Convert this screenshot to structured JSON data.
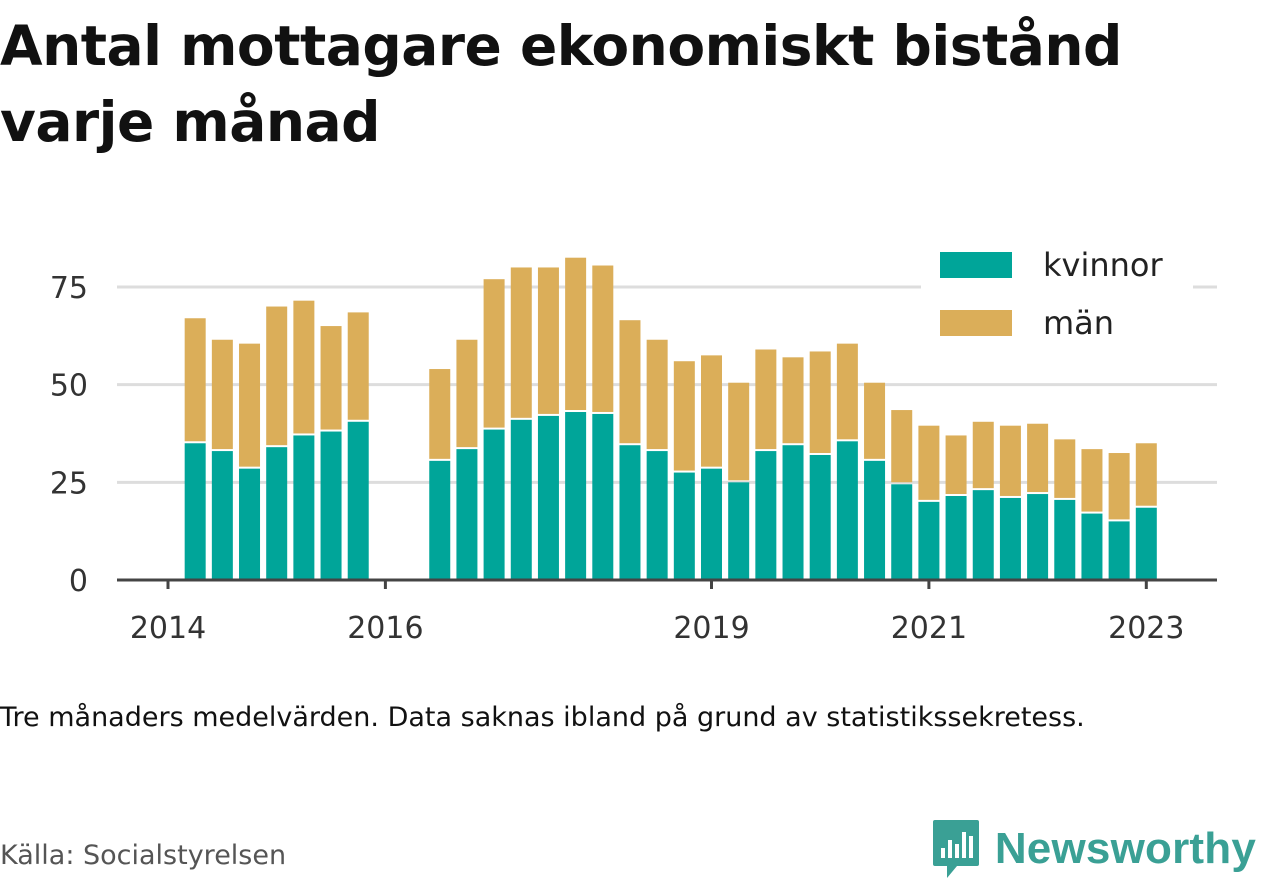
{
  "title": "Antal mottagare ekonomiskt bistånd varje månad",
  "note": "Tre månaders medelvärden. Data saknas ibland på grund av statistikssekretess.",
  "source": "Källa: Socialstyrelsen",
  "brand": {
    "name": "Newsworthy",
    "icon": "newsworthy-logo-icon",
    "color": "#3aa095"
  },
  "chart_data": {
    "type": "bar",
    "stacked": true,
    "x_ticks": [
      2014,
      2016,
      2019,
      2021,
      2023
    ],
    "y_ticks": [
      0,
      25,
      50,
      75
    ],
    "ylim": [
      0,
      85
    ],
    "xlim": [
      2014.0,
      2024.0
    ],
    "grid": "horizontal",
    "legend_position": "top-right",
    "x": [
      2014.25,
      2014.5,
      2014.75,
      2015.0,
      2015.25,
      2015.5,
      2015.75,
      2016.5,
      2016.75,
      2017.0,
      2017.25,
      2017.5,
      2017.75,
      2018.0,
      2018.25,
      2018.5,
      2018.75,
      2019.0,
      2019.25,
      2019.5,
      2019.75,
      2020.0,
      2020.25,
      2020.5,
      2020.75,
      2021.0,
      2021.25,
      2021.5,
      2021.75,
      2022.0,
      2022.25,
      2022.5,
      2022.75,
      2023.0
    ],
    "series": [
      {
        "name": "kvinnor",
        "color": "#00a599",
        "values": [
          35,
          33,
          28.5,
          34,
          37,
          38,
          40.5,
          30.5,
          33.5,
          38.5,
          41,
          42,
          43,
          42.5,
          34.5,
          33,
          27.5,
          28.5,
          25,
          33,
          34.5,
          32,
          35.5,
          30.5,
          24.5,
          20,
          21.5,
          23,
          21,
          22,
          20.5,
          17,
          15,
          18.5
        ]
      },
      {
        "name": "män",
        "color": "#dbae59",
        "values": [
          32,
          28.5,
          32,
          36,
          34.5,
          27,
          28,
          23.5,
          28,
          38.5,
          39,
          38,
          39.5,
          38,
          32,
          28.5,
          28.5,
          29,
          25.5,
          26,
          22.5,
          26.5,
          25,
          20,
          19,
          19.5,
          15.5,
          17.5,
          18.5,
          18,
          15.5,
          16.5,
          17.5,
          16.5
        ]
      }
    ]
  }
}
